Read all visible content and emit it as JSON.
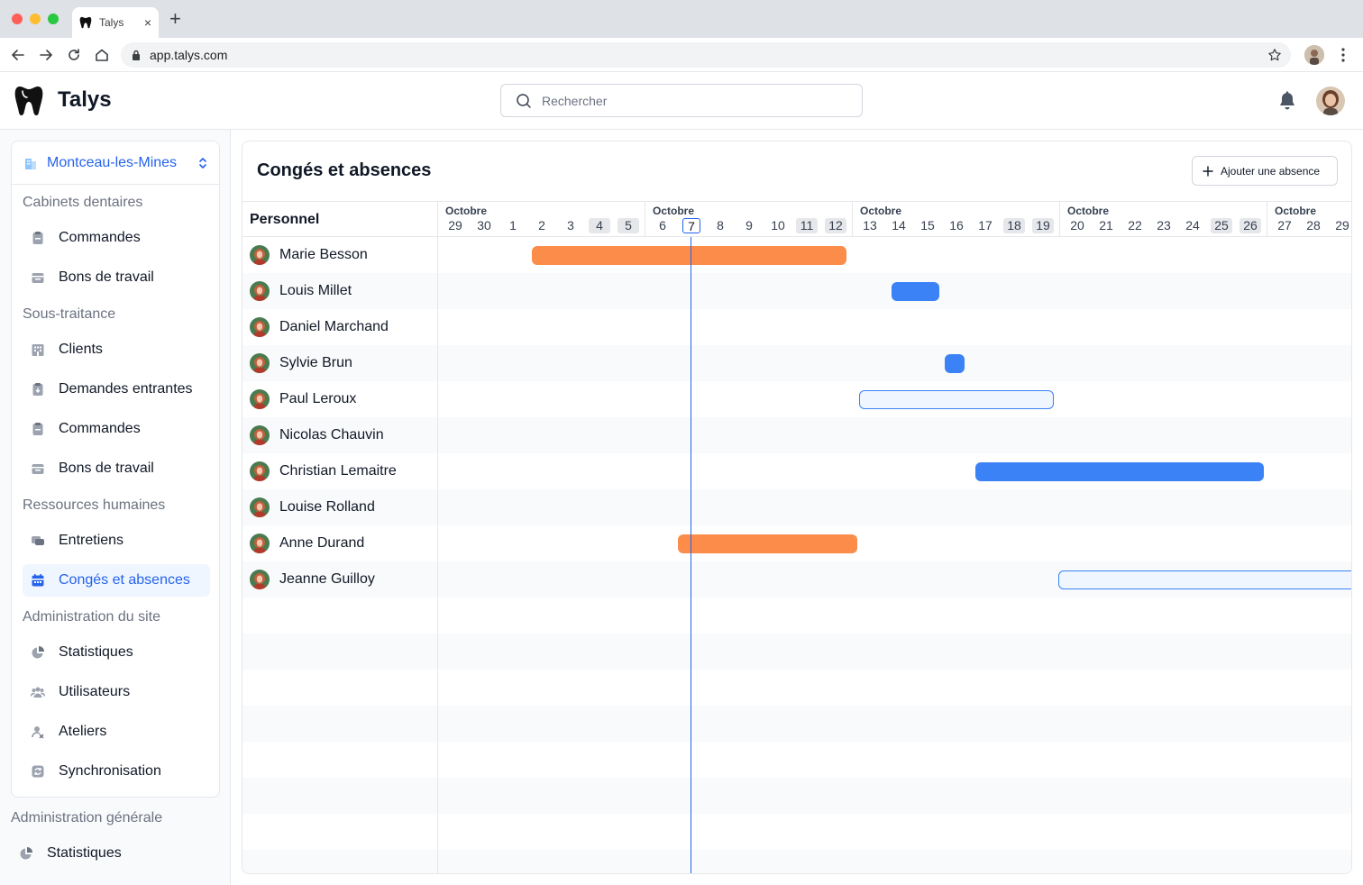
{
  "browser": {
    "tab_title": "Talys",
    "tab_close": "×",
    "new_tab": "+",
    "url": "app.talys.com"
  },
  "header": {
    "brand": "Talys",
    "search_placeholder": "Rechercher"
  },
  "sidebar": {
    "site": "Montceau-les-Mines",
    "sections": {
      "cabinets": "Cabinets dentaires",
      "sous_traitance": "Sous-traitance",
      "rh": "Ressources humaines",
      "admin_site": "Administration du site",
      "admin_generale": "Administration générale"
    },
    "items": {
      "cab_commandes": "Commandes",
      "cab_bons": "Bons de travail",
      "st_clients": "Clients",
      "st_demandes": "Demandes entrantes",
      "st_commandes": "Commandes",
      "st_bons": "Bons de travail",
      "rh_entretiens": "Entretiens",
      "rh_conges": "Congés et absences",
      "as_stats": "Statistiques",
      "as_users": "Utilisateurs",
      "as_ateliers": "Ateliers",
      "as_sync": "Synchronisation",
      "ag_stats": "Statistiques"
    },
    "active_item": "rh_conges"
  },
  "main": {
    "title": "Congés et absences",
    "add_button": "Ajouter une absence",
    "personnel_header": "Personnel",
    "weeks": [
      {
        "month": "Octobre",
        "days": [
          "29",
          "30",
          "1",
          "2",
          "3",
          "4",
          "5"
        ]
      },
      {
        "month": "Octobre",
        "days": [
          "6",
          "7",
          "8",
          "9",
          "10",
          "11",
          "12"
        ]
      },
      {
        "month": "Octobre",
        "days": [
          "13",
          "14",
          "15",
          "16",
          "17",
          "18",
          "19"
        ]
      },
      {
        "month": "Octobre",
        "days": [
          "20",
          "21",
          "22",
          "23",
          "24",
          "25",
          "26"
        ]
      },
      {
        "month": "Octobre",
        "days": [
          "27",
          "28",
          "29"
        ]
      }
    ],
    "today": "7",
    "people": [
      "Marie Besson",
      "Louis Millet",
      "Daniel Marchand",
      "Sylvie Brun",
      "Paul Leroux",
      "Nicolas Chauvin",
      "Christian Lemaitre",
      "Louise Rolland",
      "Anne Durand",
      "Jeanne Guilloy"
    ]
  },
  "colors": {
    "accent": "#2563eb",
    "absence_orange": "#fb8c4a",
    "absence_blue": "#3b82f6",
    "absence_pending_fill": "#eff6ff"
  }
}
